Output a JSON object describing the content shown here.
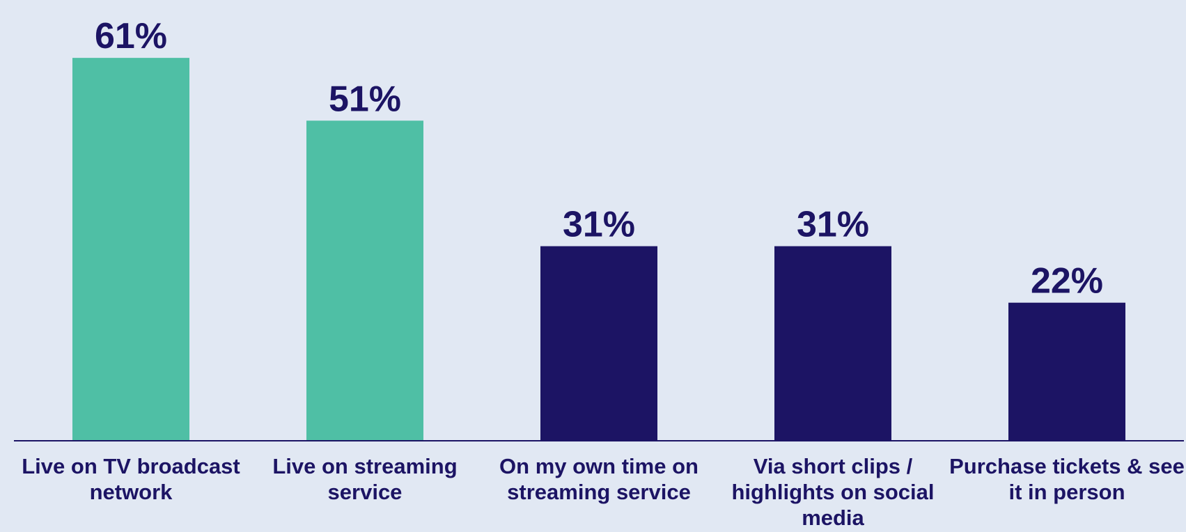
{
  "chart_data": {
    "type": "bar",
    "categories": [
      "Live on TV broadcast network",
      "Live on streaming service",
      "On my own time on streaming service",
      "Via short clips / highlights on social media",
      "Purchase tickets & see it in person"
    ],
    "values": [
      61,
      51,
      31,
      31,
      22
    ],
    "value_labels": [
      "61%",
      "51%",
      "31%",
      "31%",
      "22%"
    ],
    "colors": [
      "#4fbfa5",
      "#4fbfa5",
      "#1c1464",
      "#1c1464",
      "#1c1464"
    ],
    "ylim": [
      0,
      70
    ],
    "grid": false
  }
}
